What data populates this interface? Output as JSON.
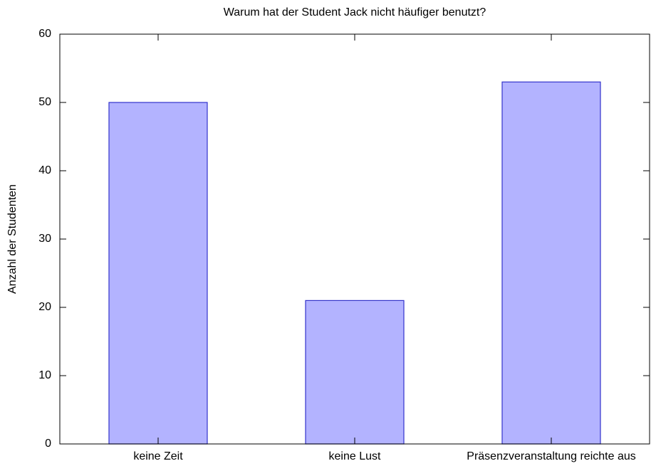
{
  "chart_data": {
    "type": "bar",
    "title": "Warum hat der Student Jack nicht häufiger benutzt?",
    "y_label": "Anzahl der Studenten",
    "categories": [
      "keine Zeit",
      "keine Lust",
      "Präsenzveranstaltung reichte aus"
    ],
    "values": [
      50,
      21,
      53
    ],
    "color": "#b3b3ff",
    "edge_color": "#3333cc",
    "ylim": [
      0,
      60
    ],
    "yticks": [
      0,
      10,
      20,
      30,
      40,
      50,
      60
    ],
    "grid": false
  }
}
